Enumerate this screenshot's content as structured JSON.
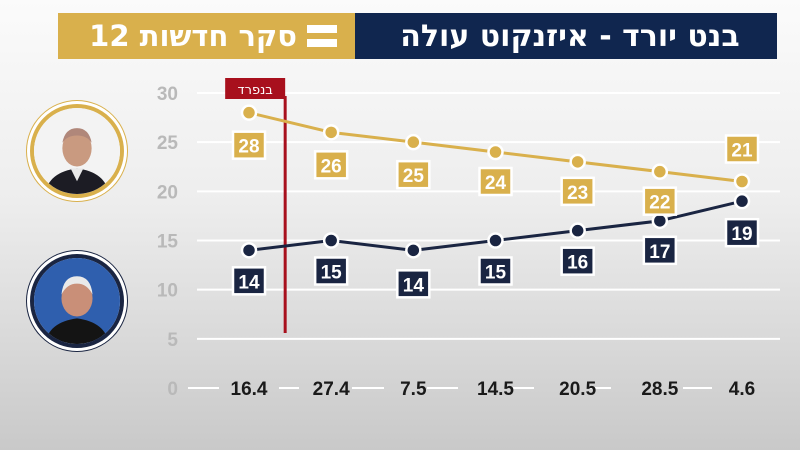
{
  "header": {
    "brand": "סקר חדשות",
    "brand_number": "12",
    "title": "בנט יורד - איזנקוט עולה"
  },
  "annotation": {
    "label": "בנפרד",
    "x": "27.4",
    "color": "#a8101d"
  },
  "colors": {
    "gold": "#d9b04c",
    "navy": "#1a2542",
    "grid": "#ffffff",
    "axis_text": "#b9b9b9",
    "xtick_text": "#1a1a1a"
  },
  "portraits": [
    {
      "series": "gold",
      "icon": "man-portrait-icon"
    },
    {
      "series": "navy",
      "icon": "man-portrait-icon"
    }
  ],
  "chart_data": {
    "type": "line",
    "categories": [
      "16.4",
      "27.4",
      "7.5",
      "14.5",
      "20.5",
      "28.5",
      "4.6"
    ],
    "series": [
      {
        "color": "#d9b04c",
        "values": [
          28,
          26,
          25,
          24,
          23,
          22,
          21
        ]
      },
      {
        "color": "#1a2542",
        "values": [
          14,
          15,
          14,
          15,
          16,
          17,
          19
        ]
      }
    ],
    "title": "",
    "xlabel": "",
    "ylabel": "",
    "ylim": [
      0,
      30
    ],
    "yticks": [
      0,
      5,
      10,
      15,
      20,
      25,
      30
    ],
    "grid": true,
    "legend": "left-portraits"
  }
}
